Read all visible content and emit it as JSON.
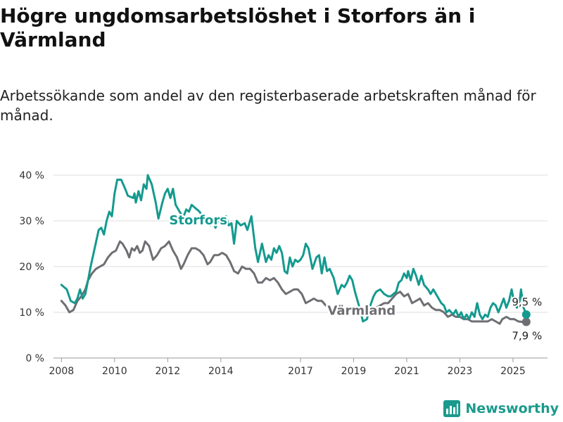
{
  "title": "Högre ungdomsarbetslöshet i Storfors än i Värmland",
  "subtitle": "Arbetssökande som andel av den registerbaserade arbetskraften månad för månad.",
  "brand": "Newsworthy",
  "colors": {
    "storfors": "#149a8f",
    "varmland": "#6e6e73",
    "grid": "#dcdcdc",
    "brand": "#1a9a8c"
  },
  "chart_data": {
    "type": "line",
    "x_unit": "year",
    "y_unit": "%",
    "ylim": [
      0,
      42
    ],
    "xlim": [
      2007.7,
      2026.3
    ],
    "yticks": [
      0,
      10,
      20,
      30,
      40
    ],
    "ytick_labels": [
      "0 %",
      "10 %",
      "20 %",
      "30 %",
      "40 %"
    ],
    "xticks": [
      2008,
      2010,
      2012,
      2014,
      2017,
      2019,
      2021,
      2023,
      2025
    ],
    "xtick_labels": [
      "2008",
      "2010",
      "2012",
      "2014",
      "2017",
      "2019",
      "2021",
      "2023",
      "2025"
    ],
    "grid": true,
    "series": [
      {
        "name": "Storfors",
        "color": "#149a8f",
        "end_label": "9,5 %",
        "points": [
          [
            2008.0,
            16.0
          ],
          [
            2008.2,
            15.0
          ],
          [
            2008.35,
            12.5
          ],
          [
            2008.5,
            12.0
          ],
          [
            2008.6,
            13.0
          ],
          [
            2008.7,
            15.0
          ],
          [
            2008.8,
            13.0
          ],
          [
            2008.9,
            14.0
          ],
          [
            2009.0,
            17.0
          ],
          [
            2009.1,
            20.0
          ],
          [
            2009.25,
            24.0
          ],
          [
            2009.4,
            28.0
          ],
          [
            2009.5,
            28.5
          ],
          [
            2009.6,
            27.0
          ],
          [
            2009.7,
            30.0
          ],
          [
            2009.8,
            32.0
          ],
          [
            2009.9,
            31.0
          ],
          [
            2010.0,
            36.0
          ],
          [
            2010.1,
            39.0
          ],
          [
            2010.25,
            39.0
          ],
          [
            2010.4,
            37.0
          ],
          [
            2010.5,
            35.5
          ],
          [
            2010.7,
            35.0
          ],
          [
            2010.75,
            36.0
          ],
          [
            2010.8,
            34.0
          ],
          [
            2010.9,
            36.5
          ],
          [
            2011.0,
            34.5
          ],
          [
            2011.1,
            38.0
          ],
          [
            2011.2,
            37.0
          ],
          [
            2011.25,
            40.0
          ],
          [
            2011.4,
            38.0
          ],
          [
            2011.55,
            34.0
          ],
          [
            2011.65,
            30.5
          ],
          [
            2011.8,
            34.0
          ],
          [
            2011.9,
            36.0
          ],
          [
            2012.0,
            37.0
          ],
          [
            2012.1,
            35.0
          ],
          [
            2012.2,
            37.0
          ],
          [
            2012.3,
            33.5
          ],
          [
            2012.5,
            31.5
          ],
          [
            2012.6,
            31.0
          ],
          [
            2012.7,
            32.5
          ],
          [
            2012.8,
            32.0
          ],
          [
            2012.9,
            33.5
          ],
          [
            2013.0,
            33.0
          ],
          [
            2013.2,
            32.0
          ],
          [
            2013.4,
            30.0
          ],
          [
            2013.6,
            29.0
          ],
          [
            2013.7,
            30.0
          ],
          [
            2013.8,
            28.5
          ],
          [
            2013.95,
            30.5
          ],
          [
            2014.1,
            30.0
          ],
          [
            2014.2,
            31.0
          ],
          [
            2014.3,
            29.0
          ],
          [
            2014.4,
            29.5
          ],
          [
            2014.5,
            25.0
          ],
          [
            2014.6,
            30.0
          ],
          [
            2014.75,
            29.0
          ],
          [
            2014.9,
            29.5
          ],
          [
            2015.0,
            28.0
          ],
          [
            2015.15,
            31.0
          ],
          [
            2015.3,
            24.0
          ],
          [
            2015.4,
            21.0
          ],
          [
            2015.55,
            25.0
          ],
          [
            2015.7,
            21.0
          ],
          [
            2015.8,
            22.5
          ],
          [
            2015.9,
            21.5
          ],
          [
            2016.0,
            24.0
          ],
          [
            2016.1,
            23.0
          ],
          [
            2016.2,
            24.5
          ],
          [
            2016.3,
            23.0
          ],
          [
            2016.4,
            19.0
          ],
          [
            2016.5,
            18.5
          ],
          [
            2016.6,
            22.0
          ],
          [
            2016.7,
            20.0
          ],
          [
            2016.8,
            21.5
          ],
          [
            2016.9,
            21.0
          ],
          [
            2017.0,
            21.5
          ],
          [
            2017.1,
            22.5
          ],
          [
            2017.2,
            25.0
          ],
          [
            2017.3,
            24.0
          ],
          [
            2017.45,
            19.5
          ],
          [
            2017.6,
            22.0
          ],
          [
            2017.7,
            22.5
          ],
          [
            2017.8,
            18.5
          ],
          [
            2017.9,
            22.0
          ],
          [
            2018.0,
            19.0
          ],
          [
            2018.1,
            19.5
          ],
          [
            2018.25,
            17.5
          ],
          [
            2018.4,
            14.0
          ],
          [
            2018.55,
            16.0
          ],
          [
            2018.65,
            15.5
          ],
          [
            2018.75,
            16.5
          ],
          [
            2018.85,
            18.0
          ],
          [
            2018.95,
            17.0
          ],
          [
            2019.05,
            14.5
          ],
          [
            2019.15,
            12.5
          ],
          [
            2019.25,
            10.5
          ],
          [
            2019.35,
            8.0
          ],
          [
            2019.5,
            8.5
          ],
          [
            2019.6,
            11.0
          ],
          [
            2019.75,
            13.5
          ],
          [
            2019.85,
            14.5
          ],
          [
            2020.0,
            15.0
          ],
          [
            2020.15,
            14.0
          ],
          [
            2020.3,
            13.5
          ],
          [
            2020.4,
            13.5
          ],
          [
            2020.5,
            14.0
          ],
          [
            2020.6,
            14.5
          ],
          [
            2020.7,
            16.5
          ],
          [
            2020.8,
            17.0
          ],
          [
            2020.9,
            18.5
          ],
          [
            2021.0,
            17.5
          ],
          [
            2021.05,
            19.0
          ],
          [
            2021.15,
            17.0
          ],
          [
            2021.25,
            19.5
          ],
          [
            2021.35,
            18.0
          ],
          [
            2021.45,
            16.0
          ],
          [
            2021.55,
            18.0
          ],
          [
            2021.65,
            16.0
          ],
          [
            2021.8,
            15.0
          ],
          [
            2021.9,
            14.0
          ],
          [
            2022.0,
            15.0
          ],
          [
            2022.15,
            13.5
          ],
          [
            2022.3,
            12.0
          ],
          [
            2022.4,
            11.5
          ],
          [
            2022.5,
            10.0
          ],
          [
            2022.6,
            10.5
          ],
          [
            2022.75,
            9.5
          ],
          [
            2022.85,
            10.5
          ],
          [
            2022.95,
            9.0
          ],
          [
            2023.05,
            10.0
          ],
          [
            2023.15,
            8.5
          ],
          [
            2023.25,
            9.5
          ],
          [
            2023.35,
            8.5
          ],
          [
            2023.45,
            10.0
          ],
          [
            2023.55,
            9.0
          ],
          [
            2023.65,
            12.0
          ],
          [
            2023.75,
            9.5
          ],
          [
            2023.85,
            8.5
          ],
          [
            2023.95,
            9.5
          ],
          [
            2024.05,
            9.0
          ],
          [
            2024.15,
            11.0
          ],
          [
            2024.25,
            12.0
          ],
          [
            2024.35,
            11.5
          ],
          [
            2024.45,
            10.0
          ],
          [
            2024.55,
            11.5
          ],
          [
            2024.65,
            13.0
          ],
          [
            2024.75,
            11.0
          ],
          [
            2024.85,
            12.5
          ],
          [
            2024.95,
            15.0
          ],
          [
            2025.05,
            12.0
          ],
          [
            2025.15,
            11.0
          ],
          [
            2025.25,
            12.5
          ],
          [
            2025.3,
            15.0
          ],
          [
            2025.4,
            11.0
          ],
          [
            2025.5,
            9.5
          ]
        ]
      },
      {
        "name": "Värmland",
        "color": "#6e6e73",
        "end_label": "7,9 %",
        "points": [
          [
            2008.0,
            12.5
          ],
          [
            2008.15,
            11.5
          ],
          [
            2008.3,
            10.0
          ],
          [
            2008.45,
            10.5
          ],
          [
            2008.6,
            12.5
          ],
          [
            2008.75,
            13.5
          ],
          [
            2008.9,
            15.0
          ],
          [
            2009.0,
            17.0
          ],
          [
            2009.15,
            18.5
          ],
          [
            2009.3,
            19.5
          ],
          [
            2009.45,
            20.0
          ],
          [
            2009.6,
            20.5
          ],
          [
            2009.75,
            22.0
          ],
          [
            2009.9,
            23.0
          ],
          [
            2010.05,
            23.5
          ],
          [
            2010.2,
            25.5
          ],
          [
            2010.3,
            25.0
          ],
          [
            2010.45,
            23.5
          ],
          [
            2010.55,
            22.0
          ],
          [
            2010.65,
            24.0
          ],
          [
            2010.75,
            23.5
          ],
          [
            2010.85,
            24.5
          ],
          [
            2010.95,
            23.0
          ],
          [
            2011.05,
            23.5
          ],
          [
            2011.15,
            25.5
          ],
          [
            2011.3,
            24.5
          ],
          [
            2011.45,
            21.5
          ],
          [
            2011.6,
            22.5
          ],
          [
            2011.75,
            24.0
          ],
          [
            2011.9,
            24.5
          ],
          [
            2012.05,
            25.5
          ],
          [
            2012.2,
            23.5
          ],
          [
            2012.35,
            22.0
          ],
          [
            2012.5,
            19.5
          ],
          [
            2012.6,
            20.5
          ],
          [
            2012.75,
            22.5
          ],
          [
            2012.9,
            24.0
          ],
          [
            2013.05,
            24.0
          ],
          [
            2013.2,
            23.5
          ],
          [
            2013.35,
            22.5
          ],
          [
            2013.5,
            20.5
          ],
          [
            2013.6,
            21.0
          ],
          [
            2013.75,
            22.5
          ],
          [
            2013.9,
            22.5
          ],
          [
            2014.05,
            23.0
          ],
          [
            2014.2,
            22.5
          ],
          [
            2014.35,
            21.0
          ],
          [
            2014.5,
            19.0
          ],
          [
            2014.65,
            18.5
          ],
          [
            2014.8,
            20.0
          ],
          [
            2014.95,
            19.5
          ],
          [
            2015.1,
            19.5
          ],
          [
            2015.25,
            18.5
          ],
          [
            2015.4,
            16.5
          ],
          [
            2015.55,
            16.5
          ],
          [
            2015.7,
            17.5
          ],
          [
            2015.85,
            17.0
          ],
          [
            2016.0,
            17.5
          ],
          [
            2016.15,
            16.5
          ],
          [
            2016.3,
            15.0
          ],
          [
            2016.45,
            14.0
          ],
          [
            2016.6,
            14.5
          ],
          [
            2016.75,
            15.0
          ],
          [
            2016.9,
            15.0
          ],
          [
            2017.05,
            14.0
          ],
          [
            2017.2,
            12.0
          ],
          [
            2017.35,
            12.5
          ],
          [
            2017.5,
            13.0
          ],
          [
            2017.65,
            12.5
          ],
          [
            2017.8,
            12.5
          ],
          [
            2017.95,
            11.5
          ],
          [
            2018.1,
            11.0
          ],
          [
            2018.25,
            10.5
          ],
          [
            2018.4,
            9.5
          ],
          [
            2018.5,
            10.0
          ],
          [
            2018.65,
            10.5
          ],
          [
            2018.8,
            10.5
          ],
          [
            2018.95,
            10.5
          ],
          [
            2019.1,
            10.5
          ],
          [
            2019.25,
            10.0
          ],
          [
            2019.4,
            9.5
          ],
          [
            2019.55,
            10.5
          ],
          [
            2019.7,
            11.0
          ],
          [
            2019.85,
            11.0
          ],
          [
            2020.0,
            11.5
          ],
          [
            2020.15,
            12.0
          ],
          [
            2020.3,
            12.0
          ],
          [
            2020.45,
            13.0
          ],
          [
            2020.6,
            14.0
          ],
          [
            2020.75,
            14.5
          ],
          [
            2020.9,
            13.5
          ],
          [
            2021.05,
            14.0
          ],
          [
            2021.2,
            12.0
          ],
          [
            2021.35,
            12.5
          ],
          [
            2021.5,
            13.0
          ],
          [
            2021.65,
            11.5
          ],
          [
            2021.8,
            12.0
          ],
          [
            2021.95,
            11.0
          ],
          [
            2022.1,
            10.5
          ],
          [
            2022.25,
            10.5
          ],
          [
            2022.4,
            10.0
          ],
          [
            2022.55,
            9.0
          ],
          [
            2022.7,
            9.5
          ],
          [
            2022.85,
            9.0
          ],
          [
            2023.0,
            9.0
          ],
          [
            2023.15,
            8.5
          ],
          [
            2023.3,
            8.5
          ],
          [
            2023.45,
            8.0
          ],
          [
            2023.6,
            8.0
          ],
          [
            2023.75,
            8.0
          ],
          [
            2023.9,
            8.0
          ],
          [
            2024.05,
            8.0
          ],
          [
            2024.2,
            8.5
          ],
          [
            2024.35,
            8.0
          ],
          [
            2024.5,
            7.5
          ],
          [
            2024.6,
            8.5
          ],
          [
            2024.75,
            9.0
          ],
          [
            2024.9,
            8.5
          ],
          [
            2025.05,
            8.5
          ],
          [
            2025.2,
            8.0
          ],
          [
            2025.35,
            7.9
          ],
          [
            2025.5,
            7.9
          ]
        ]
      }
    ]
  }
}
